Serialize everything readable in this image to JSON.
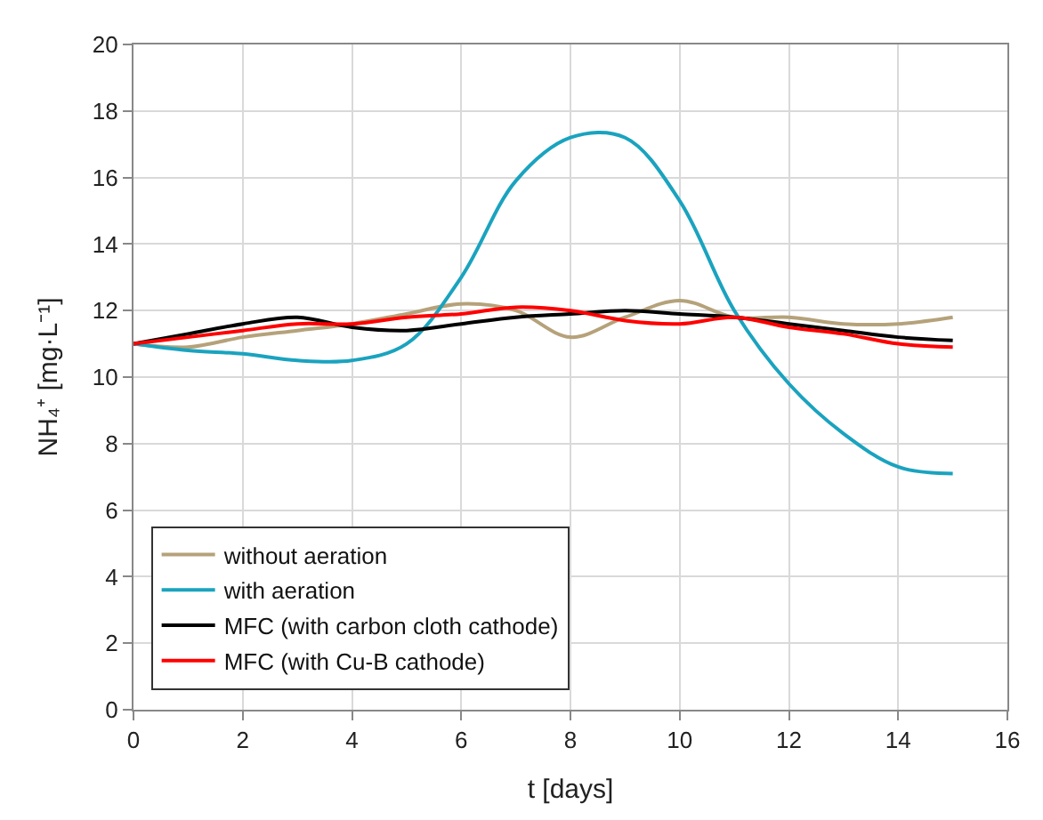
{
  "chart_data": {
    "type": "line",
    "xlabel": "t [days]",
    "ylabel": "NH₄⁺ [mg·L⁻¹]",
    "x": [
      0,
      1,
      2,
      3,
      4,
      5,
      6,
      7,
      8,
      9,
      10,
      11,
      12,
      13,
      14,
      15
    ],
    "xlim": [
      0,
      16
    ],
    "xticks": [
      0,
      2,
      4,
      6,
      8,
      10,
      12,
      14,
      16
    ],
    "ylim": [
      0,
      20
    ],
    "yticks": [
      0,
      2,
      4,
      6,
      8,
      10,
      12,
      14,
      16,
      18,
      20
    ],
    "grid": true,
    "legend": "bottom left",
    "marker": "none",
    "line_style": "solid",
    "series": [
      {
        "name": "without aeration",
        "color": "#b5a27a",
        "values": [
          11,
          10.9,
          11.2,
          11.4,
          11.6,
          11.9,
          12.2,
          12.0,
          11.2,
          11.8,
          12.3,
          11.8,
          11.8,
          11.6,
          11.6,
          11.8
        ]
      },
      {
        "name": "with aeration",
        "color": "#1aa3bf",
        "values": [
          11,
          10.8,
          10.7,
          10.5,
          10.5,
          11.0,
          13.0,
          15.9,
          17.2,
          17.2,
          15.3,
          12.0,
          9.8,
          8.3,
          7.3,
          7.1
        ]
      },
      {
        "name": "MFC (with carbon cloth cathode)",
        "color": "#000000",
        "values": [
          11,
          11.3,
          11.6,
          11.8,
          11.5,
          11.4,
          11.6,
          11.8,
          11.9,
          12.0,
          11.9,
          11.8,
          11.6,
          11.4,
          11.2,
          11.1
        ]
      },
      {
        "name": "MFC (with Cu-B cathode)",
        "color": "#ff0000",
        "values": [
          11,
          11.2,
          11.4,
          11.6,
          11.6,
          11.8,
          11.9,
          12.1,
          12.0,
          11.7,
          11.6,
          11.8,
          11.5,
          11.3,
          11.0,
          10.9
        ]
      }
    ]
  }
}
